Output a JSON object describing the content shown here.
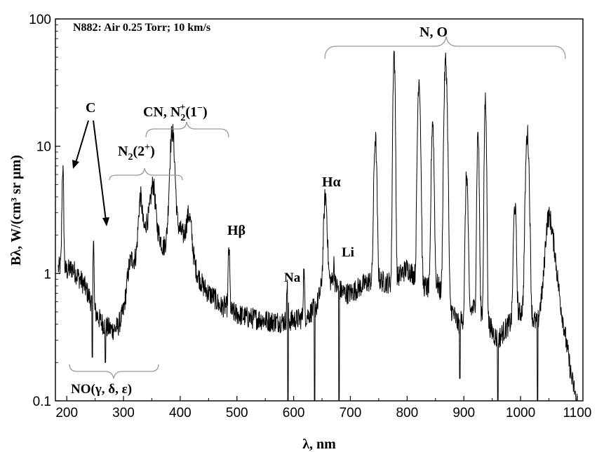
{
  "chart_data": {
    "type": "line",
    "title": "N882: Air 0.25 Torr; 10 km/s",
    "xlabel": "λ, nm",
    "ylabel": "Bλ, W/(cm³ sr μm)",
    "xlim": [
      180,
      1110
    ],
    "ylim": [
      0.1,
      100
    ],
    "yscale": "log",
    "grid": false,
    "x_ticks": [
      "200",
      "300",
      "400",
      "500",
      "600",
      "700",
      "800",
      "900",
      "1000",
      "1100"
    ],
    "x_tick_values": [
      200,
      300,
      400,
      500,
      600,
      700,
      800,
      900,
      1000,
      1100
    ],
    "y_ticks": [
      "0.1",
      "1",
      "10",
      "100"
    ],
    "y_tick_values": [
      0.1,
      1,
      10,
      100
    ],
    "background": [
      [
        180,
        1.05
      ],
      [
        190,
        1.15
      ],
      [
        200,
        1.05
      ],
      [
        210,
        1.1
      ],
      [
        220,
        0.95
      ],
      [
        230,
        0.82
      ],
      [
        240,
        0.65
      ],
      [
        250,
        0.5
      ],
      [
        260,
        0.42
      ],
      [
        270,
        0.38
      ],
      [
        280,
        0.36
      ],
      [
        290,
        0.38
      ],
      [
        300,
        0.5
      ],
      [
        310,
        0.9
      ],
      [
        320,
        1.3
      ],
      [
        330,
        1.5
      ],
      [
        340,
        2.5
      ],
      [
        350,
        3.2
      ],
      [
        360,
        2.2
      ],
      [
        370,
        1.6
      ],
      [
        380,
        2.0
      ],
      [
        390,
        2.5
      ],
      [
        400,
        2.2
      ],
      [
        410,
        1.8
      ],
      [
        420,
        1.4
      ],
      [
        430,
        1.0
      ],
      [
        440,
        0.8
      ],
      [
        450,
        0.7
      ],
      [
        460,
        0.65
      ],
      [
        470,
        0.55
      ],
      [
        480,
        0.55
      ],
      [
        490,
        0.5
      ],
      [
        500,
        0.48
      ],
      [
        520,
        0.45
      ],
      [
        540,
        0.44
      ],
      [
        560,
        0.42
      ],
      [
        580,
        0.42
      ],
      [
        600,
        0.43
      ],
      [
        620,
        0.45
      ],
      [
        640,
        0.55
      ],
      [
        650,
        0.8
      ],
      [
        660,
        0.9
      ],
      [
        670,
        0.85
      ],
      [
        680,
        0.75
      ],
      [
        690,
        0.7
      ],
      [
        700,
        0.7
      ],
      [
        710,
        0.75
      ],
      [
        720,
        0.8
      ],
      [
        730,
        0.85
      ],
      [
        740,
        0.9
      ],
      [
        750,
        0.9
      ],
      [
        760,
        0.85
      ],
      [
        770,
        0.85
      ],
      [
        780,
        0.9
      ],
      [
        790,
        1.0
      ],
      [
        800,
        1.1
      ],
      [
        810,
        1.0
      ],
      [
        820,
        0.9
      ],
      [
        830,
        0.8
      ],
      [
        840,
        0.75
      ],
      [
        850,
        0.9
      ],
      [
        860,
        0.7
      ],
      [
        870,
        0.6
      ],
      [
        880,
        0.5
      ],
      [
        890,
        0.4
      ],
      [
        900,
        0.45
      ],
      [
        910,
        0.5
      ],
      [
        920,
        0.55
      ],
      [
        930,
        0.5
      ],
      [
        940,
        0.45
      ],
      [
        950,
        0.35
      ],
      [
        960,
        0.3
      ],
      [
        970,
        0.35
      ],
      [
        980,
        0.4
      ],
      [
        990,
        0.45
      ],
      [
        1000,
        0.5
      ],
      [
        1010,
        0.55
      ],
      [
        1020,
        0.45
      ],
      [
        1030,
        0.4
      ],
      [
        1040,
        0.8
      ],
      [
        1050,
        2.2
      ],
      [
        1060,
        1.5
      ],
      [
        1070,
        0.6
      ],
      [
        1080,
        0.3
      ],
      [
        1090,
        0.15
      ],
      [
        1100,
        0.1
      ]
    ],
    "peaks": [
      [
        193,
        6.8,
        1.2
      ],
      [
        247,
        2.0,
        0.8
      ],
      [
        315,
        1.3,
        5
      ],
      [
        330,
        4.0,
        3
      ],
      [
        352,
        5.0,
        3
      ],
      [
        386,
        13.0,
        3.5
      ],
      [
        415,
        2.9,
        4
      ],
      [
        486,
        1.6,
        1.2
      ],
      [
        589,
        0.92,
        1.0
      ],
      [
        618,
        1.05,
        1.0
      ],
      [
        656,
        4.1,
        2.5
      ],
      [
        671,
        1.2,
        1.0
      ],
      [
        744,
        11.5,
        2.0
      ],
      [
        777,
        55.0,
        1.5
      ],
      [
        821,
        34.0,
        2.0
      ],
      [
        845,
        16.0,
        1.8
      ],
      [
        868,
        47.0,
        2.2
      ],
      [
        905,
        6.0,
        1.8
      ],
      [
        925,
        13.0,
        1.5
      ],
      [
        938,
        22.0,
        1.5
      ],
      [
        990,
        3.5,
        2.0
      ],
      [
        1012,
        12.5,
        2.5
      ],
      [
        1050,
        2.8,
        4.0
      ]
    ],
    "dips": [
      [
        245,
        0.22
      ],
      [
        268,
        0.2
      ],
      [
        590,
        0.1
      ],
      [
        637,
        0.1
      ],
      [
        680,
        0.1
      ],
      [
        893,
        0.15
      ],
      [
        960,
        0.1
      ],
      [
        1030,
        0.1
      ],
      [
        1098,
        0.1
      ]
    ],
    "annotations": {
      "c": "C",
      "n2_label": "N",
      "n2_sub": "2",
      "n2_tail": "(2",
      "n2_sup": "+",
      "n2_close": ")",
      "cn_label": "CN, N",
      "cn_sub": "2",
      "cn_sup": "+",
      "cn_tail": "(1",
      "cn_sup2": "−",
      "cn_close": ")",
      "hbeta": "Hβ",
      "halpha": "Hα",
      "na": "Na",
      "li": "Li",
      "no": "N, O",
      "no_band": "NO(γ, δ, ε)"
    }
  }
}
